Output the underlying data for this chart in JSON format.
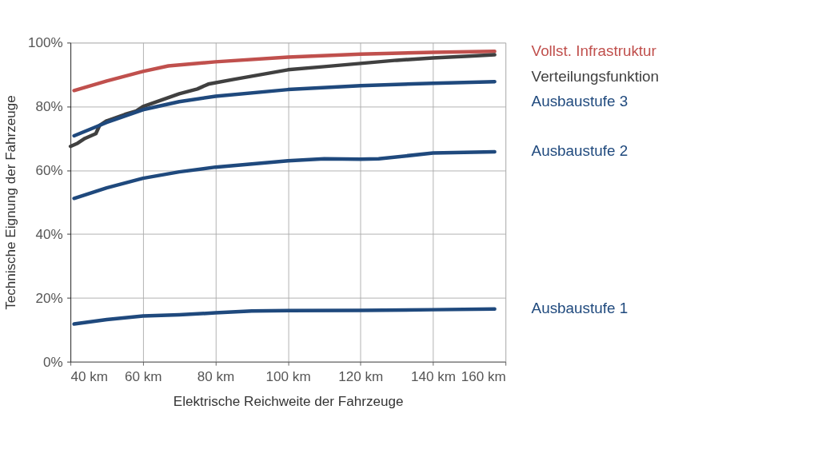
{
  "chart_data": {
    "type": "line",
    "xlabel": "Elektrische Reichweite der Fahrzeuge",
    "ylabel": "Technische Eignung der Fahrzeuge",
    "xlim": [
      40,
      160
    ],
    "ylim": [
      0,
      100
    ],
    "xticks": [
      {
        "value": 40,
        "label": "40 km"
      },
      {
        "value": 60,
        "label": "60 km"
      },
      {
        "value": 80,
        "label": "80 km"
      },
      {
        "value": 100,
        "label": "100 km"
      },
      {
        "value": 120,
        "label": "120 km"
      },
      {
        "value": 140,
        "label": "140 km"
      },
      {
        "value": 160,
        "label": "160 km"
      }
    ],
    "yticks": [
      {
        "value": 0,
        "label": "0%"
      },
      {
        "value": 20,
        "label": "20%"
      },
      {
        "value": 40,
        "label": "40%"
      },
      {
        "value": 60,
        "label": "60%"
      },
      {
        "value": 80,
        "label": "80%"
      },
      {
        "value": 100,
        "label": "100%"
      }
    ],
    "grid": true,
    "legend": "right",
    "line_style": "solid",
    "marker": "none",
    "series": [
      {
        "name": "Vollst. Infrastruktur",
        "color": "#c0504d",
        "x": [
          41,
          50,
          60,
          67,
          80,
          100,
          120,
          140,
          157
        ],
        "values": [
          85,
          88,
          91,
          92.7,
          94,
          95.5,
          96.4,
          97,
          97.3
        ]
      },
      {
        "name": "Verteilungsfunktion",
        "color": "#404040",
        "x": [
          40,
          42,
          44,
          46,
          47,
          48,
          50,
          55,
          58,
          60,
          65,
          70,
          75,
          78,
          85,
          90,
          95,
          100,
          110,
          120,
          130,
          140,
          150,
          157
        ],
        "values": [
          67.5,
          68.5,
          70,
          71,
          71.5,
          74,
          75.5,
          77.5,
          78.5,
          80,
          82,
          84,
          85.5,
          87,
          88.5,
          89.5,
          90.5,
          91.5,
          92.5,
          93.5,
          94.5,
          95.2,
          95.8,
          96.2
        ]
      },
      {
        "name": "Ausbaustufe 3",
        "color": "#1f497d",
        "x": [
          41,
          50,
          60,
          70,
          80,
          100,
          120,
          140,
          157
        ],
        "values": [
          70.8,
          75,
          79,
          81.5,
          83.2,
          85.3,
          86.5,
          87.3,
          87.8
        ]
      },
      {
        "name": "Ausbaustufe 2",
        "color": "#1f497d",
        "x": [
          41,
          50,
          60,
          70,
          80,
          90,
          100,
          110,
          120,
          125,
          140,
          157
        ],
        "values": [
          51.2,
          54.5,
          57.5,
          59.5,
          61,
          62,
          63,
          63.6,
          63.5,
          63.6,
          65.4,
          65.8
        ]
      },
      {
        "name": "Ausbaustufe 1",
        "color": "#1f497d",
        "x": [
          41,
          50,
          60,
          70,
          80,
          90,
          100,
          120,
          140,
          157
        ],
        "values": [
          11.8,
          13.2,
          14.3,
          14.7,
          15.3,
          15.9,
          16,
          16.1,
          16.3,
          16.5
        ]
      }
    ]
  }
}
